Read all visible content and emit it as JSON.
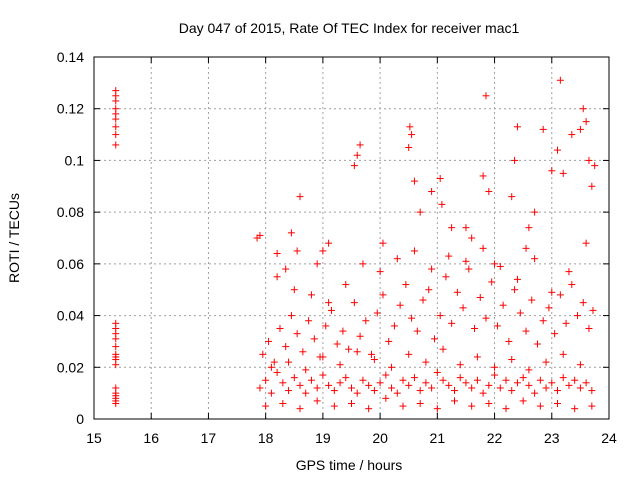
{
  "chart_data": {
    "type": "scatter",
    "title": "Day 047 of 2015, Rate Of TEC Index for receiver mac1",
    "xlabel": "GPS time / hours",
    "ylabel": "ROTI / TECUs",
    "xlim": [
      15,
      24
    ],
    "ylim": [
      0,
      0.14
    ],
    "xticks": [
      "15",
      "16",
      "17",
      "18",
      "19",
      "20",
      "21",
      "22",
      "23",
      "24"
    ],
    "yticks": [
      "0",
      "0.02",
      "0.04",
      "0.06",
      "0.08",
      "0.1",
      "0.12",
      "0.14"
    ],
    "grid": true,
    "marker": "+",
    "color": "#ff0000",
    "series": [
      {
        "name": "ROTI",
        "x": [
          15.38,
          15.38,
          15.38,
          15.38,
          15.38,
          15.38,
          15.38,
          15.38,
          15.38,
          15.38,
          15.38,
          15.38,
          15.38,
          15.38,
          15.38,
          15.38,
          15.38,
          15.38,
          15.38,
          15.38,
          15.38,
          15.38,
          15.38,
          15.38,
          17.85,
          17.9,
          18.2,
          18.35,
          18.45,
          18.55,
          18.6,
          18.9,
          19.0,
          19.1,
          19.55,
          19.6,
          19.65,
          20.05,
          20.5,
          20.52,
          20.55,
          20.6,
          20.7,
          20.9,
          21.05,
          21.08,
          21.25,
          21.5,
          21.6,
          21.8,
          21.85,
          21.9,
          22.0,
          22.3,
          22.35,
          22.4,
          22.55,
          22.6,
          22.7,
          22.85,
          23.0,
          23.1,
          23.15,
          23.2,
          23.35,
          23.5,
          23.55,
          23.6,
          23.65,
          23.7,
          23.75,
          17.9,
          18.0,
          18.1,
          18.2,
          18.3,
          18.4,
          18.5,
          18.6,
          18.7,
          18.8,
          18.9,
          19.0,
          19.1,
          19.2,
          19.3,
          19.4,
          19.5,
          19.6,
          19.7,
          19.8,
          19.9,
          20.0,
          20.1,
          20.2,
          20.3,
          20.4,
          20.5,
          20.6,
          20.7,
          20.8,
          20.9,
          21.0,
          21.1,
          21.2,
          21.3,
          21.4,
          21.5,
          21.6,
          21.7,
          21.8,
          21.9,
          22.0,
          22.1,
          22.2,
          22.3,
          22.4,
          22.5,
          22.6,
          22.7,
          22.8,
          22.9,
          23.0,
          23.1,
          23.2,
          23.3,
          23.4,
          23.5,
          23.6,
          23.7,
          17.95,
          18.05,
          18.15,
          18.25,
          18.35,
          18.45,
          18.55,
          18.65,
          18.75,
          18.85,
          18.95,
          19.05,
          19.15,
          19.25,
          19.35,
          19.45,
          19.55,
          19.65,
          19.75,
          19.85,
          19.95,
          20.05,
          20.15,
          20.25,
          20.35,
          20.45,
          20.55,
          20.65,
          20.75,
          20.85,
          20.95,
          21.05,
          21.15,
          21.25,
          21.35,
          21.45,
          21.55,
          21.65,
          21.75,
          21.85,
          21.95,
          22.05,
          22.15,
          22.25,
          22.35,
          22.45,
          22.55,
          22.65,
          22.75,
          22.85,
          22.95,
          23.05,
          23.15,
          23.25,
          23.35,
          23.45,
          23.55,
          23.65,
          23.72,
          18.0,
          18.3,
          18.6,
          18.9,
          19.2,
          19.5,
          19.8,
          20.1,
          20.4,
          20.7,
          21.0,
          21.3,
          21.6,
          21.9,
          22.2,
          22.5,
          22.8,
          23.1,
          23.4,
          23.7,
          18.1,
          18.4,
          18.7,
          19.0,
          19.3,
          19.6,
          19.9,
          20.2,
          20.5,
          20.8,
          21.1,
          21.4,
          21.7,
          22.0,
          22.3,
          22.6,
          22.9,
          23.2,
          23.5,
          18.2,
          18.5,
          18.8,
          19.1,
          19.4,
          19.7,
          20.0,
          20.3,
          20.6,
          20.9,
          21.2,
          21.5,
          21.8,
          22.1,
          22.4,
          22.7,
          23.0,
          23.3,
          23.6
        ],
        "y": [
          0.127,
          0.125,
          0.123,
          0.12,
          0.118,
          0.116,
          0.113,
          0.11,
          0.106,
          0.037,
          0.035,
          0.033,
          0.031,
          0.028,
          0.025,
          0.024,
          0.023,
          0.021,
          0.012,
          0.01,
          0.009,
          0.008,
          0.007,
          0.006,
          0.07,
          0.071,
          0.064,
          0.058,
          0.072,
          0.065,
          0.086,
          0.06,
          0.065,
          0.068,
          0.098,
          0.102,
          0.106,
          0.068,
          0.105,
          0.113,
          0.11,
          0.092,
          0.08,
          0.088,
          0.093,
          0.083,
          0.074,
          0.074,
          0.07,
          0.094,
          0.125,
          0.088,
          0.06,
          0.086,
          0.1,
          0.113,
          0.066,
          0.074,
          0.08,
          0.112,
          0.096,
          0.104,
          0.131,
          0.095,
          0.11,
          0.112,
          0.12,
          0.115,
          0.1,
          0.09,
          0.098,
          0.012,
          0.015,
          0.01,
          0.018,
          0.014,
          0.011,
          0.016,
          0.013,
          0.01,
          0.015,
          0.012,
          0.017,
          0.013,
          0.011,
          0.014,
          0.016,
          0.012,
          0.01,
          0.015,
          0.013,
          0.011,
          0.014,
          0.017,
          0.012,
          0.01,
          0.015,
          0.013,
          0.016,
          0.011,
          0.014,
          0.012,
          0.018,
          0.015,
          0.013,
          0.011,
          0.016,
          0.014,
          0.012,
          0.015,
          0.01,
          0.013,
          0.017,
          0.012,
          0.015,
          0.011,
          0.014,
          0.016,
          0.013,
          0.01,
          0.015,
          0.012,
          0.014,
          0.011,
          0.016,
          0.013,
          0.015,
          0.012,
          0.014,
          0.011,
          0.025,
          0.03,
          0.022,
          0.035,
          0.028,
          0.04,
          0.033,
          0.026,
          0.038,
          0.031,
          0.024,
          0.036,
          0.042,
          0.029,
          0.034,
          0.027,
          0.045,
          0.032,
          0.038,
          0.025,
          0.041,
          0.048,
          0.03,
          0.036,
          0.044,
          0.052,
          0.039,
          0.034,
          0.046,
          0.05,
          0.031,
          0.04,
          0.055,
          0.037,
          0.049,
          0.043,
          0.058,
          0.035,
          0.047,
          0.039,
          0.053,
          0.036,
          0.044,
          0.03,
          0.05,
          0.041,
          0.034,
          0.046,
          0.029,
          0.038,
          0.043,
          0.033,
          0.048,
          0.037,
          0.052,
          0.04,
          0.045,
          0.035,
          0.042,
          0.005,
          0.006,
          0.004,
          0.007,
          0.005,
          0.006,
          0.004,
          0.008,
          0.005,
          0.006,
          0.004,
          0.007,
          0.005,
          0.006,
          0.004,
          0.007,
          0.005,
          0.006,
          0.004,
          0.005,
          0.02,
          0.022,
          0.019,
          0.024,
          0.021,
          0.026,
          0.023,
          0.02,
          0.025,
          0.022,
          0.027,
          0.021,
          0.024,
          0.02,
          0.023,
          0.019,
          0.022,
          0.025,
          0.021,
          0.055,
          0.05,
          0.048,
          0.045,
          0.052,
          0.06,
          0.057,
          0.062,
          0.065,
          0.058,
          0.063,
          0.061,
          0.066,
          0.059,
          0.054,
          0.062,
          0.049,
          0.057,
          0.068
        ]
      }
    ]
  }
}
